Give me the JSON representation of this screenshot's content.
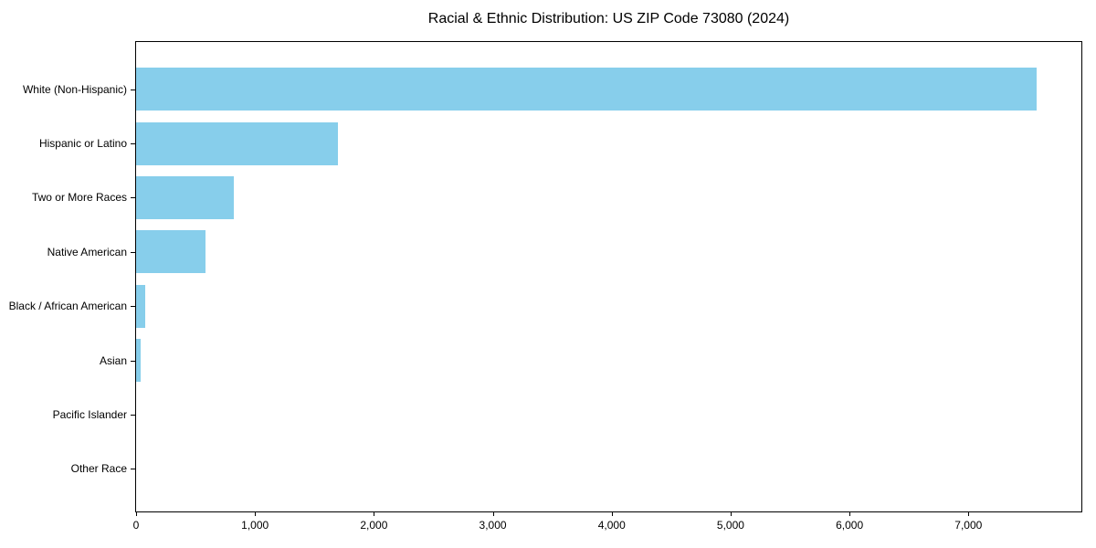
{
  "chart_data": {
    "type": "bar",
    "orientation": "horizontal",
    "title": "Racial & Ethnic Distribution: US ZIP Code 73080 (2024)",
    "categories": [
      "White (Non-Hispanic)",
      "Hispanic or Latino",
      "Two or More Races",
      "Native American",
      "Black / African American",
      "Asian",
      "Pacific Islander",
      "Other Race"
    ],
    "values": [
      7570,
      1700,
      825,
      580,
      75,
      40,
      0,
      0
    ],
    "xlabel": "",
    "ylabel": "",
    "xlim": [
      0,
      7950
    ],
    "xticks": {
      "values": [
        0,
        1000,
        2000,
        3000,
        4000,
        5000,
        6000,
        7000
      ],
      "labels": [
        "0",
        "1,000",
        "2,000",
        "3,000",
        "4,000",
        "5,000",
        "6,000",
        "7,000"
      ]
    },
    "grid": false,
    "legend": null,
    "bar_color": "#87CEEB",
    "axis_color": "#000000",
    "text_color": "#000000",
    "background_color": "#ffffff"
  }
}
